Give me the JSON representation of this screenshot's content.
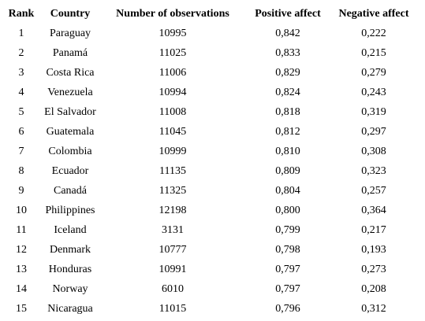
{
  "table": {
    "header": [
      "Rank",
      "Country",
      "Number of observations",
      "Positive affect",
      "Negative affect"
    ],
    "rows": [
      [
        "1",
        "Paraguay",
        "10995",
        "0,842",
        "0,222"
      ],
      [
        "2",
        "Panamá",
        "11025",
        "0,833",
        "0,215"
      ],
      [
        "3",
        "Costa Rica",
        "11006",
        "0,829",
        "0,279"
      ],
      [
        "4",
        "Venezuela",
        "10994",
        "0,824",
        "0,243"
      ],
      [
        "5",
        "El Salvador",
        "11008",
        "0,818",
        "0,319"
      ],
      [
        "6",
        "Guatemala",
        "11045",
        "0,812",
        "0,297"
      ],
      [
        "7",
        "Colombia",
        "10999",
        "0,810",
        "0,308"
      ],
      [
        "8",
        "Ecuador",
        "11135",
        "0,809",
        "0,323"
      ],
      [
        "9",
        "Canadá",
        "11325",
        "0,804",
        "0,257"
      ],
      [
        "10",
        "Philippines",
        "12198",
        "0,800",
        "0,364"
      ],
      [
        "11",
        "Iceland",
        "3131",
        "0,799",
        "0,217"
      ],
      [
        "12",
        "Denmark",
        "10777",
        "0,798",
        "0,193"
      ],
      [
        "13",
        "Honduras",
        "10991",
        "0,797",
        "0,273"
      ],
      [
        "14",
        "Norway",
        "6010",
        "0,797",
        "0,208"
      ],
      [
        "15",
        "Nicaragua",
        "11015",
        "0,796",
        "0,312"
      ]
    ]
  }
}
